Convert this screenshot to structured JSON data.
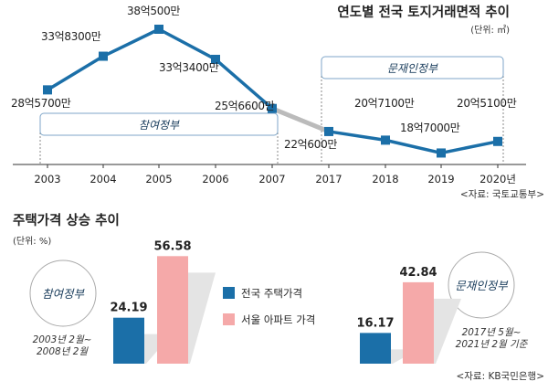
{
  "chart_data": [
    {
      "type": "line",
      "title": "연도별 전국 토지거래면적  추이",
      "unit_label": "(단위: ㎡)",
      "source": "<자료: 국토교통부>",
      "categories": [
        "2003",
        "2004",
        "2005",
        "2006",
        "2007",
        "2017",
        "2018",
        "2019",
        "2020년"
      ],
      "values_eok": [
        28.57,
        33.83,
        38.05,
        33.34,
        25.66,
        22.06,
        20.71,
        18.7,
        20.51
      ],
      "value_labels": [
        "28억5700만",
        "33억8300만",
        "38억500만",
        "33억3400만",
        "25억6600만",
        "22억600만",
        "20억7100만",
        "18억7000만",
        "20억5100만"
      ],
      "periods": [
        {
          "label": "참여정부",
          "from": 0,
          "to": 4
        },
        {
          "label": "문재인정부",
          "from": 5,
          "to": 8
        }
      ],
      "colors": {
        "line": "#1b6fa8",
        "marker": "#1b6fa8",
        "gap": "#bbbbbb"
      }
    },
    {
      "type": "bar",
      "title": "주택가격 상승 추이",
      "unit_label": "(단위: %)",
      "source": "<자료: KB국민은행>",
      "series": [
        {
          "name": "전국 주택가격",
          "color": "#1b6fa8"
        },
        {
          "name": "서울 아파트 가격",
          "color": "#f5a9a9"
        }
      ],
      "groups": [
        {
          "label": "참여정부",
          "period_lines": [
            "2003년 2월~",
            "2008년 2월"
          ],
          "values": [
            24.19,
            56.58
          ],
          "value_labels": [
            "24.19",
            "56.58"
          ]
        },
        {
          "label": "문재인정부",
          "period_lines": [
            "2017년 5월~",
            "2021년 2월 기준"
          ],
          "values": [
            16.17,
            42.84
          ],
          "value_labels": [
            "16.17",
            "42.84"
          ]
        }
      ]
    }
  ]
}
